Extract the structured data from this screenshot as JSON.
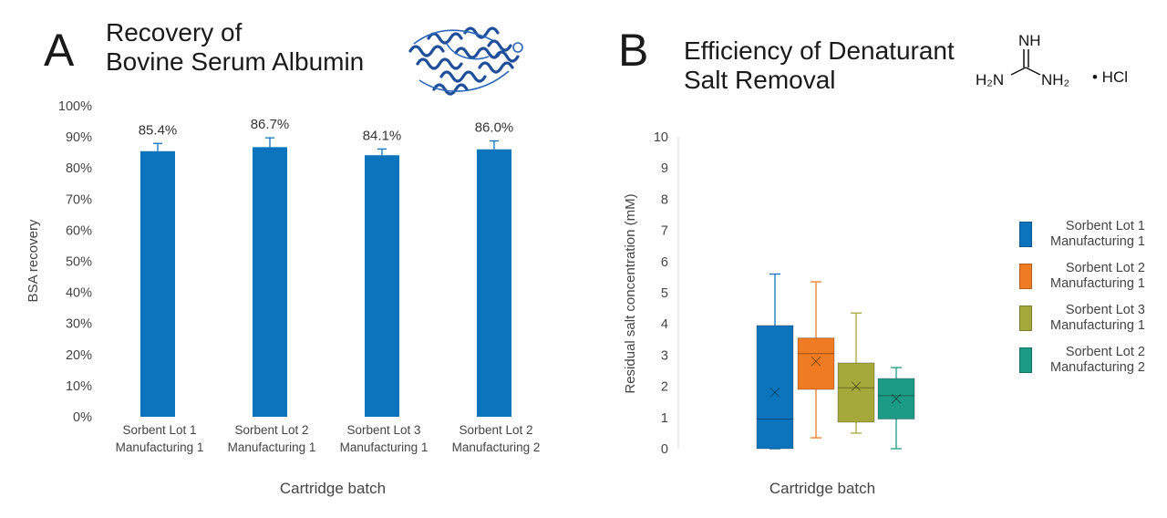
{
  "panel_a": {
    "letter": "A",
    "title_line1": "Recovery of",
    "title_line2": "Bovine Serum Albumin",
    "protein_icon": "protein-structure-icon"
  },
  "panel_b": {
    "letter": "B",
    "title_line1": "Efficiency of Denaturant",
    "title_line2": "Salt Removal",
    "molecule": {
      "nh": "NH",
      "h2n": "H₂N",
      "nh2": "NH₂",
      "hcl": "• HCl"
    }
  },
  "colors": {
    "bar_blue": "#0b74bc",
    "box_blue": "#0b74bc",
    "box_orange": "#ef7c23",
    "box_olive": "#a5a83a",
    "box_teal": "#1d9a86"
  },
  "chart_data": [
    {
      "type": "bar",
      "title": "Recovery of Bovine Serum Albumin",
      "xlabel": "Cartridge batch",
      "ylabel": "BSA recovery",
      "ylim": [
        0,
        100
      ],
      "y_ticks": [
        "0%",
        "10%",
        "20%",
        "30%",
        "40%",
        "50%",
        "60%",
        "70%",
        "80%",
        "90%",
        "100%"
      ],
      "categories": [
        {
          "line1": "Sorbent Lot 1",
          "line2": "Manufacturing 1"
        },
        {
          "line1": "Sorbent Lot 2",
          "line2": "Manufacturing 1"
        },
        {
          "line1": "Sorbent Lot 3",
          "line2": "Manufacturing 1"
        },
        {
          "line1": "Sorbent Lot 2",
          "line2": "Manufacturing 2"
        }
      ],
      "values": [
        85.4,
        86.7,
        84.1,
        86.0
      ],
      "error_bars": [
        2.5,
        3.0,
        2.0,
        2.7
      ],
      "data_labels": [
        "85.4%",
        "86.7%",
        "84.1%",
        "86.0%"
      ]
    },
    {
      "type": "box",
      "title": "Efficiency of Denaturant Salt Removal",
      "xlabel": "Cartridge batch",
      "ylabel": "Residual salt concentration (mM)",
      "ylim": [
        0,
        10
      ],
      "y_ticks": [
        "0",
        "1",
        "2",
        "3",
        "4",
        "5",
        "6",
        "7",
        "8",
        "9",
        "10"
      ],
      "legend_position": "right",
      "series": [
        {
          "name_line1": "Sorbent Lot 1",
          "name_line2": "Manufacturing 1",
          "color": "#0b74bc",
          "min": 0,
          "q1": 0,
          "median": 0.95,
          "q3": 3.95,
          "max": 5.6,
          "mean": 1.8
        },
        {
          "name_line1": "Sorbent Lot 2",
          "name_line2": "Manufacturing 1",
          "color": "#ef7c23",
          "min": 0.35,
          "q1": 1.9,
          "median": 3.05,
          "q3": 3.55,
          "max": 5.35,
          "mean": 2.8
        },
        {
          "name_line1": "Sorbent Lot 3",
          "name_line2": "Manufacturing 1",
          "color": "#a5a83a",
          "min": 0.5,
          "q1": 0.85,
          "median": 1.95,
          "q3": 2.75,
          "max": 4.35,
          "mean": 2.0
        },
        {
          "name_line1": "Sorbent Lot 2",
          "name_line2": "Manufacturing 2",
          "color": "#1d9a86",
          "min": 0,
          "q1": 0.95,
          "median": 1.7,
          "q3": 2.25,
          "max": 2.6,
          "mean": 1.6
        }
      ]
    }
  ]
}
